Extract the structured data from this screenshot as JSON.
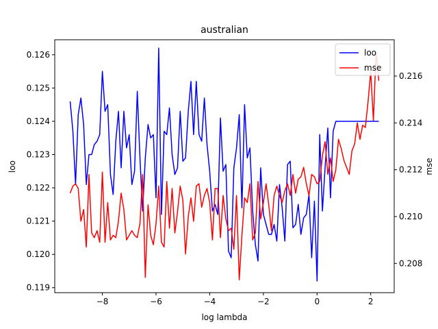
{
  "chart_data": {
    "type": "line",
    "title": "australian",
    "xlabel": "log lambda",
    "ylabel_left": "loo",
    "ylabel_right": "mse",
    "xlim": [
      -9.775,
      2.875
    ],
    "ylim_left": [
      0.11885,
      0.12645
    ],
    "ylim_right": [
      0.20675,
      0.21755
    ],
    "xticks": [
      -8,
      -6,
      -4,
      -2,
      0,
      2
    ],
    "xtick_labels": [
      "−8",
      "−6",
      "−4",
      "−2",
      "0",
      "2"
    ],
    "yticks_left": [
      0.119,
      0.12,
      0.121,
      0.122,
      0.123,
      0.124,
      0.125,
      0.126
    ],
    "ytick_labels_left": [
      "0.119",
      "0.120",
      "0.121",
      "0.122",
      "0.123",
      "0.124",
      "0.125",
      "0.126"
    ],
    "yticks_right": [
      0.208,
      0.21,
      0.212,
      0.214,
      0.216
    ],
    "ytick_labels_right": [
      "0.208",
      "0.210",
      "0.212",
      "0.214",
      "0.216"
    ],
    "legend_position": "top-right",
    "grid": false,
    "x": [
      -9.2,
      -9.1,
      -9.0,
      -8.9,
      -8.8,
      -8.7,
      -8.6,
      -8.5,
      -8.4,
      -8.3,
      -8.2,
      -8.1,
      -8.0,
      -7.9,
      -7.8,
      -7.7,
      -7.6,
      -7.5,
      -7.4,
      -7.3,
      -7.2,
      -7.1,
      -7.0,
      -6.9,
      -6.8,
      -6.7,
      -6.6,
      -6.5,
      -6.4,
      -6.3,
      -6.2,
      -6.1,
      -6.0,
      -5.9,
      -5.8,
      -5.7,
      -5.6,
      -5.5,
      -5.4,
      -5.3,
      -5.2,
      -5.1,
      -5.0,
      -4.9,
      -4.8,
      -4.7,
      -4.6,
      -4.5,
      -4.4,
      -4.3,
      -4.2,
      -4.1,
      -4.0,
      -3.9,
      -3.8,
      -3.7,
      -3.6,
      -3.5,
      -3.4,
      -3.3,
      -3.2,
      -3.1,
      -3.0,
      -2.9,
      -2.8,
      -2.7,
      -2.6,
      -2.5,
      -2.4,
      -2.3,
      -2.2,
      -2.1,
      -2.0,
      -1.9,
      -1.8,
      -1.7,
      -1.6,
      -1.5,
      -1.4,
      -1.3,
      -1.2,
      -1.1,
      -1.0,
      -0.9,
      -0.8,
      -0.7,
      -0.6,
      -0.5,
      -0.4,
      -0.3,
      -0.2,
      -0.1,
      0.0,
      0.1,
      0.2,
      0.3,
      0.4,
      0.5,
      0.6,
      0.7,
      0.8,
      0.9,
      1.0,
      1.1,
      1.2,
      1.3,
      1.4,
      1.5,
      1.6,
      1.7,
      1.8,
      1.9,
      2.0,
      2.1,
      2.2,
      2.3
    ],
    "series": [
      {
        "name": "loo",
        "color": "#0000ff",
        "axis": "left",
        "values": [
          0.1246,
          0.1237,
          0.1221,
          0.1242,
          0.1247,
          0.1239,
          0.1221,
          0.123,
          0.123,
          0.1233,
          0.1234,
          0.1236,
          0.1255,
          0.1243,
          0.1245,
          0.1224,
          0.1218,
          0.1234,
          0.1243,
          0.1226,
          0.1243,
          0.1232,
          0.1236,
          0.1221,
          0.1225,
          0.1249,
          0.1229,
          0.1213,
          0.1229,
          0.1239,
          0.1235,
          0.1236,
          0.1217,
          0.1262,
          0.1212,
          0.1237,
          0.1236,
          0.1244,
          0.123,
          0.1224,
          0.1226,
          0.1243,
          0.1228,
          0.1229,
          0.1243,
          0.1252,
          0.1236,
          0.1252,
          0.1236,
          0.1234,
          0.1247,
          0.1233,
          0.1225,
          0.1213,
          0.1215,
          0.1212,
          0.1241,
          0.1225,
          0.1227,
          0.1201,
          0.1199,
          0.1226,
          0.1232,
          0.1242,
          0.1214,
          0.1245,
          0.1229,
          0.1232,
          0.1213,
          0.1203,
          0.1198,
          0.1226,
          0.1212,
          0.1209,
          0.1206,
          0.1206,
          0.1209,
          0.1204,
          0.1221,
          0.1214,
          0.1204,
          0.1227,
          0.1228,
          0.1208,
          0.1209,
          0.1215,
          0.1206,
          0.1211,
          0.1212,
          0.1218,
          0.1199,
          0.1216,
          0.1192,
          0.1236,
          0.1213,
          0.1226,
          0.1238,
          0.1217,
          0.1237,
          0.124,
          0.124,
          0.124,
          0.124,
          0.124,
          0.124,
          0.124,
          0.124,
          0.124,
          0.124,
          0.124,
          0.124,
          0.124,
          0.124,
          0.124,
          0.124,
          0.124
        ]
      },
      {
        "name": "mse",
        "color": "#ff0000",
        "axis": "right",
        "values": [
          0.211,
          0.2113,
          0.2114,
          0.2112,
          0.2098,
          0.2103,
          0.2087,
          0.2118,
          0.2093,
          0.2091,
          0.2094,
          0.2089,
          0.2119,
          0.2089,
          0.2106,
          0.209,
          0.2092,
          0.2091,
          0.2098,
          0.211,
          0.2103,
          0.209,
          0.2092,
          0.2094,
          0.2092,
          0.2091,
          0.2097,
          0.2118,
          0.2074,
          0.2105,
          0.2092,
          0.2088,
          0.2097,
          0.2113,
          0.2089,
          0.2087,
          0.2115,
          0.2095,
          0.2112,
          0.2093,
          0.2102,
          0.2113,
          0.2107,
          0.2084,
          0.21,
          0.2108,
          0.2098,
          0.2113,
          0.2114,
          0.2104,
          0.2109,
          0.2112,
          0.2106,
          0.209,
          0.2112,
          0.2112,
          0.2091,
          0.2109,
          0.2099,
          0.2094,
          0.2095,
          0.2086,
          0.2109,
          0.2073,
          0.2092,
          0.2108,
          0.2106,
          0.2114,
          0.209,
          0.2093,
          0.2115,
          0.2099,
          0.2106,
          0.2114,
          0.2105,
          0.2094,
          0.2109,
          0.2113,
          0.2109,
          0.2106,
          0.2111,
          0.2114,
          0.2109,
          0.2118,
          0.211,
          0.2116,
          0.2117,
          0.2121,
          0.2114,
          0.2109,
          0.2118,
          0.2117,
          0.2114,
          0.2115,
          0.2126,
          0.2132,
          0.2118,
          0.2125,
          0.2115,
          0.212,
          0.2133,
          0.2129,
          0.2124,
          0.2121,
          0.2118,
          0.2128,
          0.2131,
          0.214,
          0.2133,
          0.2139,
          0.2138,
          0.2149,
          0.2162,
          0.2141,
          0.217,
          0.2158
        ]
      }
    ]
  }
}
